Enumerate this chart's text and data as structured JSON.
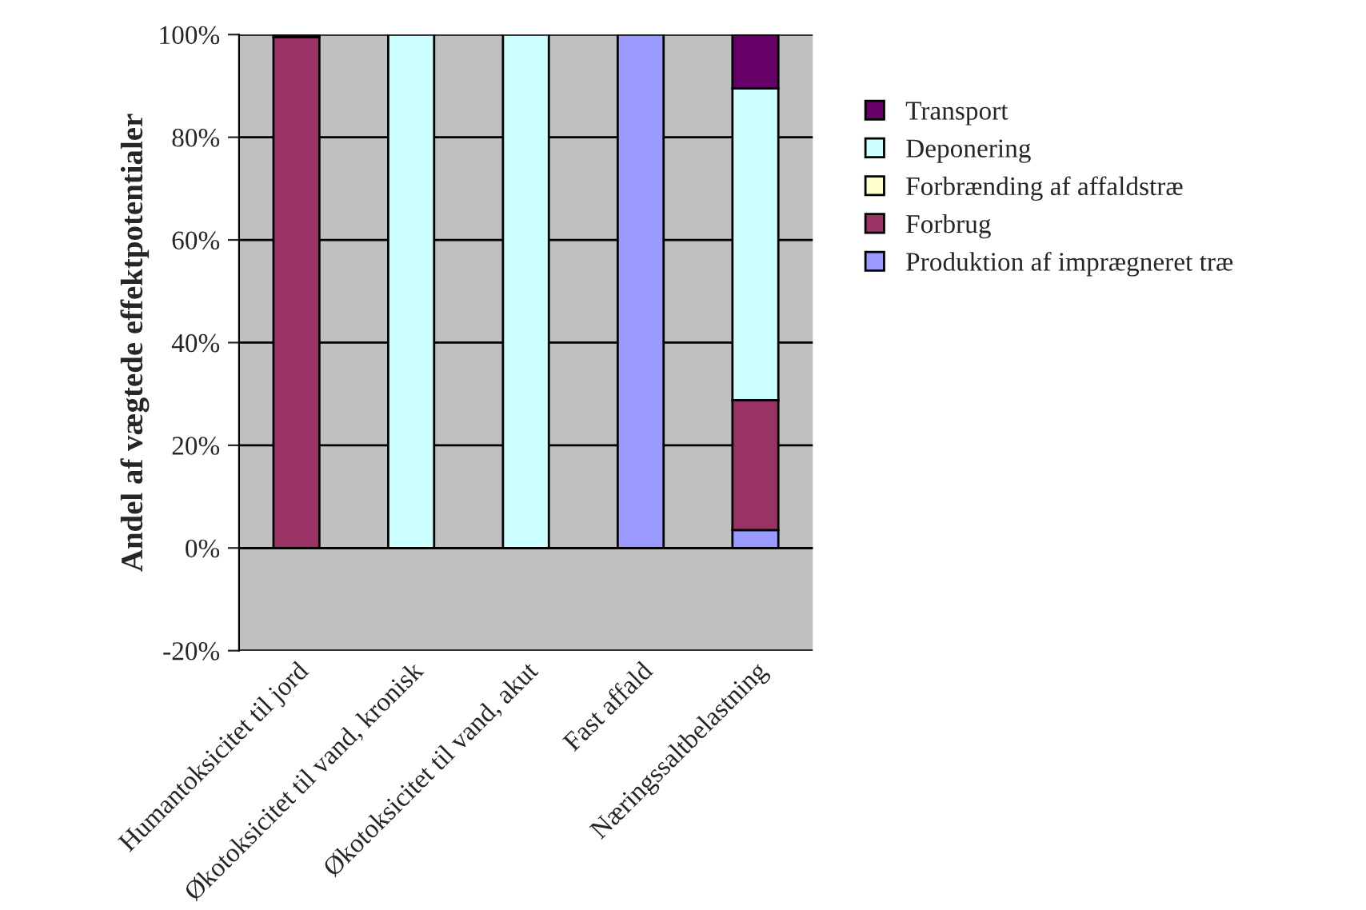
{
  "chart_data": {
    "type": "bar",
    "stacked": true,
    "ylabel": "Andel af vægtede effektpotentialer",
    "categories": [
      "Humantoksicitet til jord",
      "Økotoksicitet til vand, kronisk",
      "Økotoksicitet til vand, akut",
      "Fast affald",
      "Næringssaltbelastning"
    ],
    "series": [
      {
        "name": "Produktion af imprægneret træ",
        "color": "#9999ff",
        "values": [
          0,
          0,
          0,
          100,
          3.5
        ]
      },
      {
        "name": "Forbrug",
        "color": "#993366",
        "values": [
          99.5,
          0,
          0,
          0,
          25.3
        ]
      },
      {
        "name": "Forbrænding af affaldstræ",
        "color": "#ffffcc",
        "values": [
          0,
          0,
          0,
          0,
          0
        ]
      },
      {
        "name": "Deponering",
        "color": "#ccffff",
        "values": [
          0,
          100,
          100,
          0,
          60.7
        ]
      },
      {
        "name": "Transport",
        "color": "#660066",
        "values": [
          0.5,
          0,
          0,
          0,
          10.5
        ]
      }
    ],
    "ylim": [
      -20,
      100
    ],
    "yticks": [
      {
        "value": -20,
        "label": "-20%"
      },
      {
        "value": 0,
        "label": "0%"
      },
      {
        "value": 20,
        "label": "20%"
      },
      {
        "value": 40,
        "label": "40%"
      },
      {
        "value": 60,
        "label": "60%"
      },
      {
        "value": 80,
        "label": "80%"
      },
      {
        "value": 100,
        "label": "100%"
      }
    ],
    "grid": "y",
    "legend": "right"
  }
}
